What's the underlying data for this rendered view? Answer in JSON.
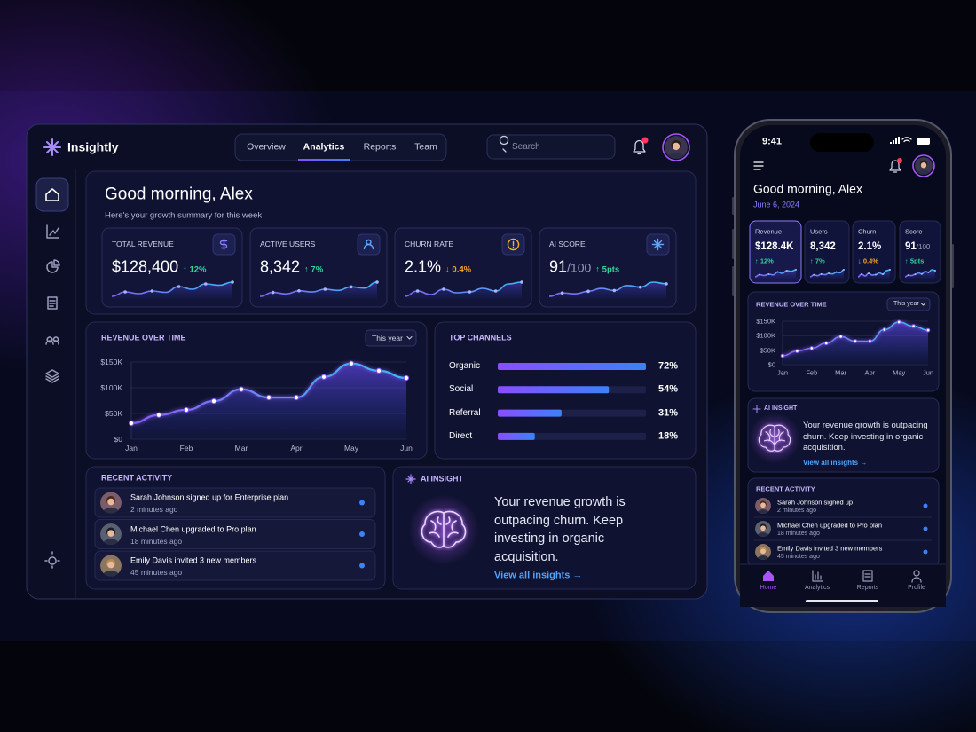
{
  "brand": "Insightly",
  "nav": [
    "Overview",
    "Analytics",
    "Reports",
    "Team"
  ],
  "search_placeholder": "Search",
  "greeting": "Good morning, Alex",
  "subtitle": "Here's your growth summary for this week",
  "kpis": [
    {
      "label": "TOTAL REVENUE",
      "value": "$128,400",
      "change": "↑ 12%",
      "change_color": "#34d399",
      "spark": [
        3,
        4,
        3.6,
        4.2,
        3.9,
        5.2,
        4.6,
        5.8,
        5.5,
        6.2
      ]
    },
    {
      "label": "ACTIVE USERS",
      "value": "8,342",
      "change": "↑ 7%",
      "change_color": "#34d399",
      "spark": [
        2,
        3,
        2.6,
        3.4,
        3.1,
        3.8,
        3.5,
        4.4,
        4.1,
        5.6
      ]
    },
    {
      "label": "CHURN RATE",
      "value": "2.1%",
      "change": "↓ 0.4%",
      "change_color": "#f5a524",
      "spark": [
        4,
        4.6,
        4.2,
        4.8,
        4.4,
        4.5,
        4.9,
        4.6,
        5.4,
        5.6
      ]
    },
    {
      "label": "AI SCORE",
      "value": "91",
      "value_suffix": "/100",
      "change": "↑ 5pts",
      "change_color": "#34d399",
      "spark": [
        2,
        2.8,
        2.6,
        3.2,
        3.9,
        3.4,
        4.6,
        4.2,
        5.4,
        5
      ]
    }
  ],
  "revenue_chart": {
    "type": "area",
    "title": "REVENUE OVER TIME",
    "period": "This year",
    "categories": [
      "Jan",
      null,
      "Feb",
      null,
      "Mar",
      null,
      "Apr",
      null,
      "May",
      null,
      "Jun"
    ],
    "values": [
      31000,
      47000,
      57000,
      74000,
      97000,
      81000,
      81000,
      121000,
      147000,
      133000,
      119000
    ],
    "ylim": [
      0,
      150000
    ],
    "yticks": [
      {
        "value": 0,
        "label": "$0"
      },
      {
        "value": 50000,
        "label": "$50K"
      },
      {
        "value": 100000,
        "label": "$100K"
      },
      {
        "value": 150000,
        "label": "$150K"
      }
    ],
    "color": "#8b5cf6"
  },
  "channels": {
    "type": "bar",
    "title": "TOP CHANNELS",
    "categories": [
      "Organic",
      "Social",
      "Referral",
      "Direct"
    ],
    "values": [
      72,
      54,
      31,
      18
    ],
    "value_labels": [
      "72%",
      "54%",
      "31%",
      "18%"
    ],
    "xlim": [
      0,
      72
    ],
    "color": "#7c4dff"
  },
  "activity": {
    "title": "RECENT ACTIVITY",
    "items": [
      {
        "text": "Sarah Johnson signed up for Enterprise plan",
        "time": "2 minutes ago"
      },
      {
        "text": "Michael Chen upgraded to Pro plan",
        "time": "18 minutes ago"
      },
      {
        "text": "Emily Davis  invited 3 new members",
        "time": "45 minutes ago"
      }
    ]
  },
  "insight": {
    "title": "AI INSIGHT",
    "text": "Your revenue growth is outpacing churn. Keep investing in organic acquisition.",
    "link": "View all insights →"
  },
  "mobile": {
    "time": "9:41",
    "date": "June 6, 2024",
    "kpis": [
      {
        "label": "Revenue",
        "value": "$128.4K",
        "change": "↑ 12%"
      },
      {
        "label": "Users",
        "value": "8,342",
        "change": "↑ 7%"
      },
      {
        "label": "Churn",
        "value": "2.1%",
        "change": "↓ 0.4%"
      },
      {
        "label": "Score",
        "value": "91",
        "value_suffix": "/100",
        "change": "↑ 5pts"
      }
    ],
    "activity": [
      {
        "text": "Sarah Johnson signed up",
        "time": "2 minutes ago"
      },
      {
        "text": "Michael Chen upgraded to Pro plan",
        "time": "18 minutes ago"
      },
      {
        "text": "Emily Davis invited 3 new members",
        "time": "45 minutes ago"
      }
    ],
    "tabs": [
      "Home",
      "Analytics",
      "Reports",
      "Profile"
    ]
  }
}
